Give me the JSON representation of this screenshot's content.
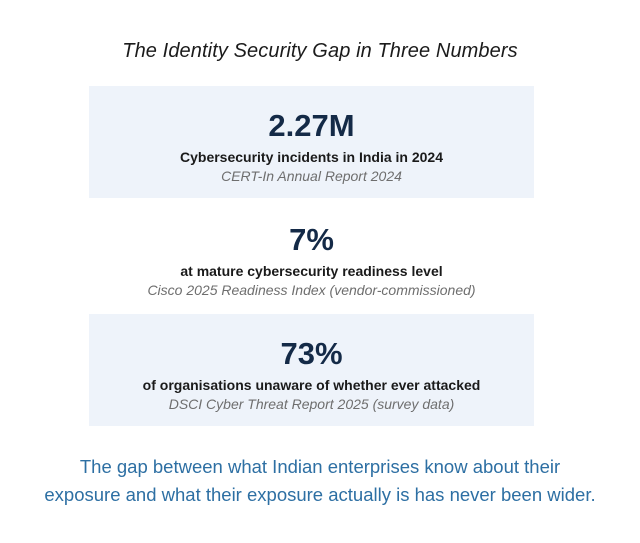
{
  "title": "The Identity Security Gap in Three Numbers",
  "stats": [
    {
      "value": "2.27M",
      "label": "Cybersecurity incidents in India in 2024",
      "source": "CERT-In Annual Report 2024"
    },
    {
      "value": "7%",
      "label": "at mature cybersecurity readiness level",
      "source": "Cisco 2025 Readiness Index (vendor-commissioned)"
    },
    {
      "value": "73%",
      "label": "of organisations unaware of whether ever attacked",
      "source": "DSCI Cyber Threat Report 2025 (survey data)"
    }
  ],
  "footer": {
    "line1": "The gap between what Indian enterprises know about their",
    "line2": "exposure and what their exposure actually is has never been wider."
  },
  "colors": {
    "panel_background": "#eef3fa",
    "stat_value": "#142a47",
    "footer_text": "#2d6fa3"
  }
}
